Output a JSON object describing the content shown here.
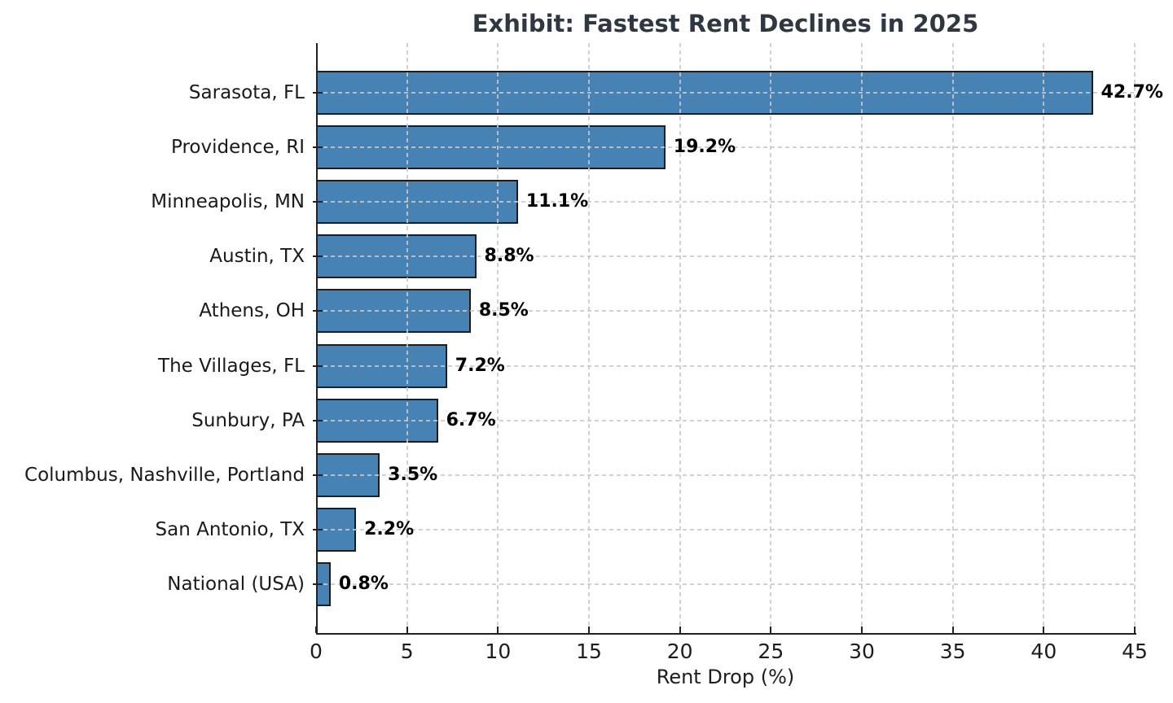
{
  "chart_data": {
    "type": "bar",
    "orientation": "horizontal",
    "title": "Exhibit: Fastest Rent Declines in 2025",
    "xlabel": "Rent Drop (%)",
    "ylabel": "",
    "categories": [
      "Sarasota, FL",
      "Providence, RI",
      "Minneapolis, MN",
      "Austin, TX",
      "Athens, OH",
      "The Villages, FL",
      "Sunbury, PA",
      "Columbus, Nashville, Portland",
      "San Antonio, TX",
      "National (USA)"
    ],
    "values": [
      42.7,
      19.2,
      11.1,
      8.8,
      8.5,
      7.2,
      6.7,
      3.5,
      2.2,
      0.8
    ],
    "value_labels": [
      "42.7%",
      "19.2%",
      "11.1%",
      "8.8%",
      "8.5%",
      "7.2%",
      "6.7%",
      "3.5%",
      "2.2%",
      "0.8%"
    ],
    "xlim": [
      0,
      45
    ],
    "xticks": [
      0,
      5,
      10,
      15,
      20,
      25,
      30,
      35,
      40,
      45
    ],
    "grid": {
      "visible": true,
      "style": "dashed",
      "axes": "both"
    },
    "legend": "none",
    "colors": {
      "bar_fill": "#4682b4",
      "bar_edge": "#1a1d22",
      "grid": "#c9c9c9",
      "axis": "#222222",
      "tick_text": "#1c1c1c",
      "category_text": "#1a1a1a",
      "value_text": "#000000",
      "title_text": "#2e3742",
      "background": "#ffffff"
    }
  }
}
